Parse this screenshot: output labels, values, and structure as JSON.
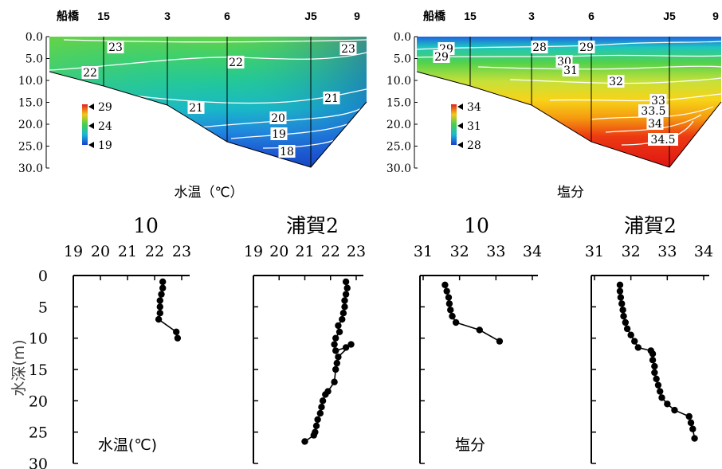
{
  "chart_data": [
    {
      "type": "heatmap",
      "title": "",
      "xlabel": "水温（℃）",
      "ylabel": "",
      "x_station_labels": [
        "船橋",
        "15",
        "3",
        "6",
        "J5",
        "9"
      ],
      "y_ticks": [
        "0.0",
        "5.0",
        "10.0",
        "15.0",
        "20.0",
        "25.0",
        "30.0"
      ],
      "ylim": [
        30,
        0
      ],
      "colorbar_labels": [
        "29",
        "24",
        "19"
      ],
      "colorbar_values": [
        29,
        24,
        19
      ],
      "contour_labels": [
        "23",
        "23",
        "22",
        "22",
        "21",
        "21",
        "20",
        "19",
        "18"
      ],
      "contour_values": [
        23,
        23,
        22,
        22,
        21,
        21,
        20,
        19,
        18
      ]
    },
    {
      "type": "heatmap",
      "title": "",
      "xlabel": "塩分",
      "ylabel": "",
      "x_station_labels": [
        "船橋",
        "15",
        "3",
        "6",
        "J5",
        "9"
      ],
      "y_ticks": [
        "0.0",
        "5.0",
        "10.0",
        "15.0",
        "20.0",
        "25.0",
        "30.0"
      ],
      "ylim": [
        30,
        0
      ],
      "colorbar_labels": [
        "34",
        "31",
        "28"
      ],
      "colorbar_values": [
        34,
        31,
        28
      ],
      "contour_labels": [
        "29",
        "29",
        "28",
        "29",
        "30",
        "31",
        "32",
        "33",
        "33.5",
        "34",
        "34.5"
      ],
      "contour_values": [
        29,
        29,
        28,
        29,
        30,
        31,
        32,
        33,
        33.5,
        34,
        34.5
      ]
    },
    {
      "type": "line",
      "title": "10",
      "xlabel": "",
      "ylabel": "水深(m)",
      "annotation": "水温(℃)",
      "x_ticks": [
        "19",
        "20",
        "21",
        "22",
        "23"
      ],
      "y_ticks": [
        "0",
        "5",
        "10",
        "15",
        "20",
        "25",
        "30"
      ],
      "xlim": [
        19,
        23.8
      ],
      "ylim": [
        30,
        0
      ],
      "series": [
        {
          "x": [
            22.3,
            22.3,
            22.25,
            22.2,
            22.2,
            22.2,
            22.15,
            22.8,
            22.85
          ],
          "y": [
            1,
            2,
            3,
            4,
            5,
            6,
            7,
            9,
            10
          ]
        }
      ]
    },
    {
      "type": "line",
      "title": "浦賀2",
      "xlabel": "",
      "ylabel": "",
      "x_ticks": [
        "19",
        "20",
        "21",
        "22",
        "23"
      ],
      "y_ticks": [],
      "xlim": [
        19,
        23.8
      ],
      "ylim": [
        30,
        0
      ],
      "series": [
        {
          "x": [
            22.6,
            22.65,
            22.6,
            22.55,
            22.55,
            22.5,
            22.45,
            22.3,
            22.35,
            22.2,
            22.15,
            22.2,
            22.6,
            22.8,
            22.3,
            22.25,
            22.2,
            22.15,
            21.9,
            21.8,
            21.7,
            21.65,
            21.6,
            21.5,
            21.45,
            21.4,
            21.35,
            21.0
          ],
          "y": [
            1,
            2,
            3,
            4,
            5,
            6,
            7,
            8,
            9,
            10,
            11,
            12,
            11.5,
            11,
            13,
            14,
            15,
            17,
            18.5,
            19,
            20,
            21,
            22,
            23,
            24,
            25,
            25.5,
            26.5
          ]
        }
      ]
    },
    {
      "type": "line",
      "title": "10",
      "xlabel": "",
      "ylabel": "",
      "annotation": "塩分",
      "x_ticks": [
        "31",
        "32",
        "33",
        "34"
      ],
      "y_ticks": [],
      "xlim": [
        31,
        34
      ],
      "ylim": [
        30,
        0
      ],
      "series": [
        {
          "x": [
            31.6,
            31.65,
            31.7,
            31.72,
            31.75,
            31.8,
            31.9,
            32.55,
            33.1
          ],
          "y": [
            1.5,
            2.5,
            3.5,
            4.5,
            5.5,
            6.5,
            7.5,
            8.7,
            10.5
          ]
        }
      ]
    },
    {
      "type": "line",
      "title": "浦賀2",
      "xlabel": "",
      "ylabel": "",
      "x_ticks": [
        "31",
        "32",
        "33",
        "34"
      ],
      "y_ticks": [],
      "xlim": [
        31,
        34
      ],
      "ylim": [
        30,
        0
      ],
      "series": [
        {
          "x": [
            31.7,
            31.7,
            31.72,
            31.75,
            31.78,
            31.8,
            31.85,
            31.9,
            32.0,
            32.1,
            32.2,
            32.55,
            32.6,
            32.6,
            32.65,
            32.65,
            32.7,
            32.75,
            32.8,
            32.85,
            33.0,
            33.2,
            33.6,
            33.65,
            33.7,
            33.75
          ],
          "y": [
            1.5,
            2.5,
            3.5,
            4.5,
            5.5,
            6.5,
            7.5,
            8.5,
            9.5,
            10.5,
            11.5,
            12,
            12.5,
            13.5,
            14.5,
            15.5,
            16.5,
            17.5,
            18.5,
            19.5,
            20.5,
            21.5,
            22.5,
            23.5,
            24.5,
            26
          ]
        }
      ]
    }
  ]
}
